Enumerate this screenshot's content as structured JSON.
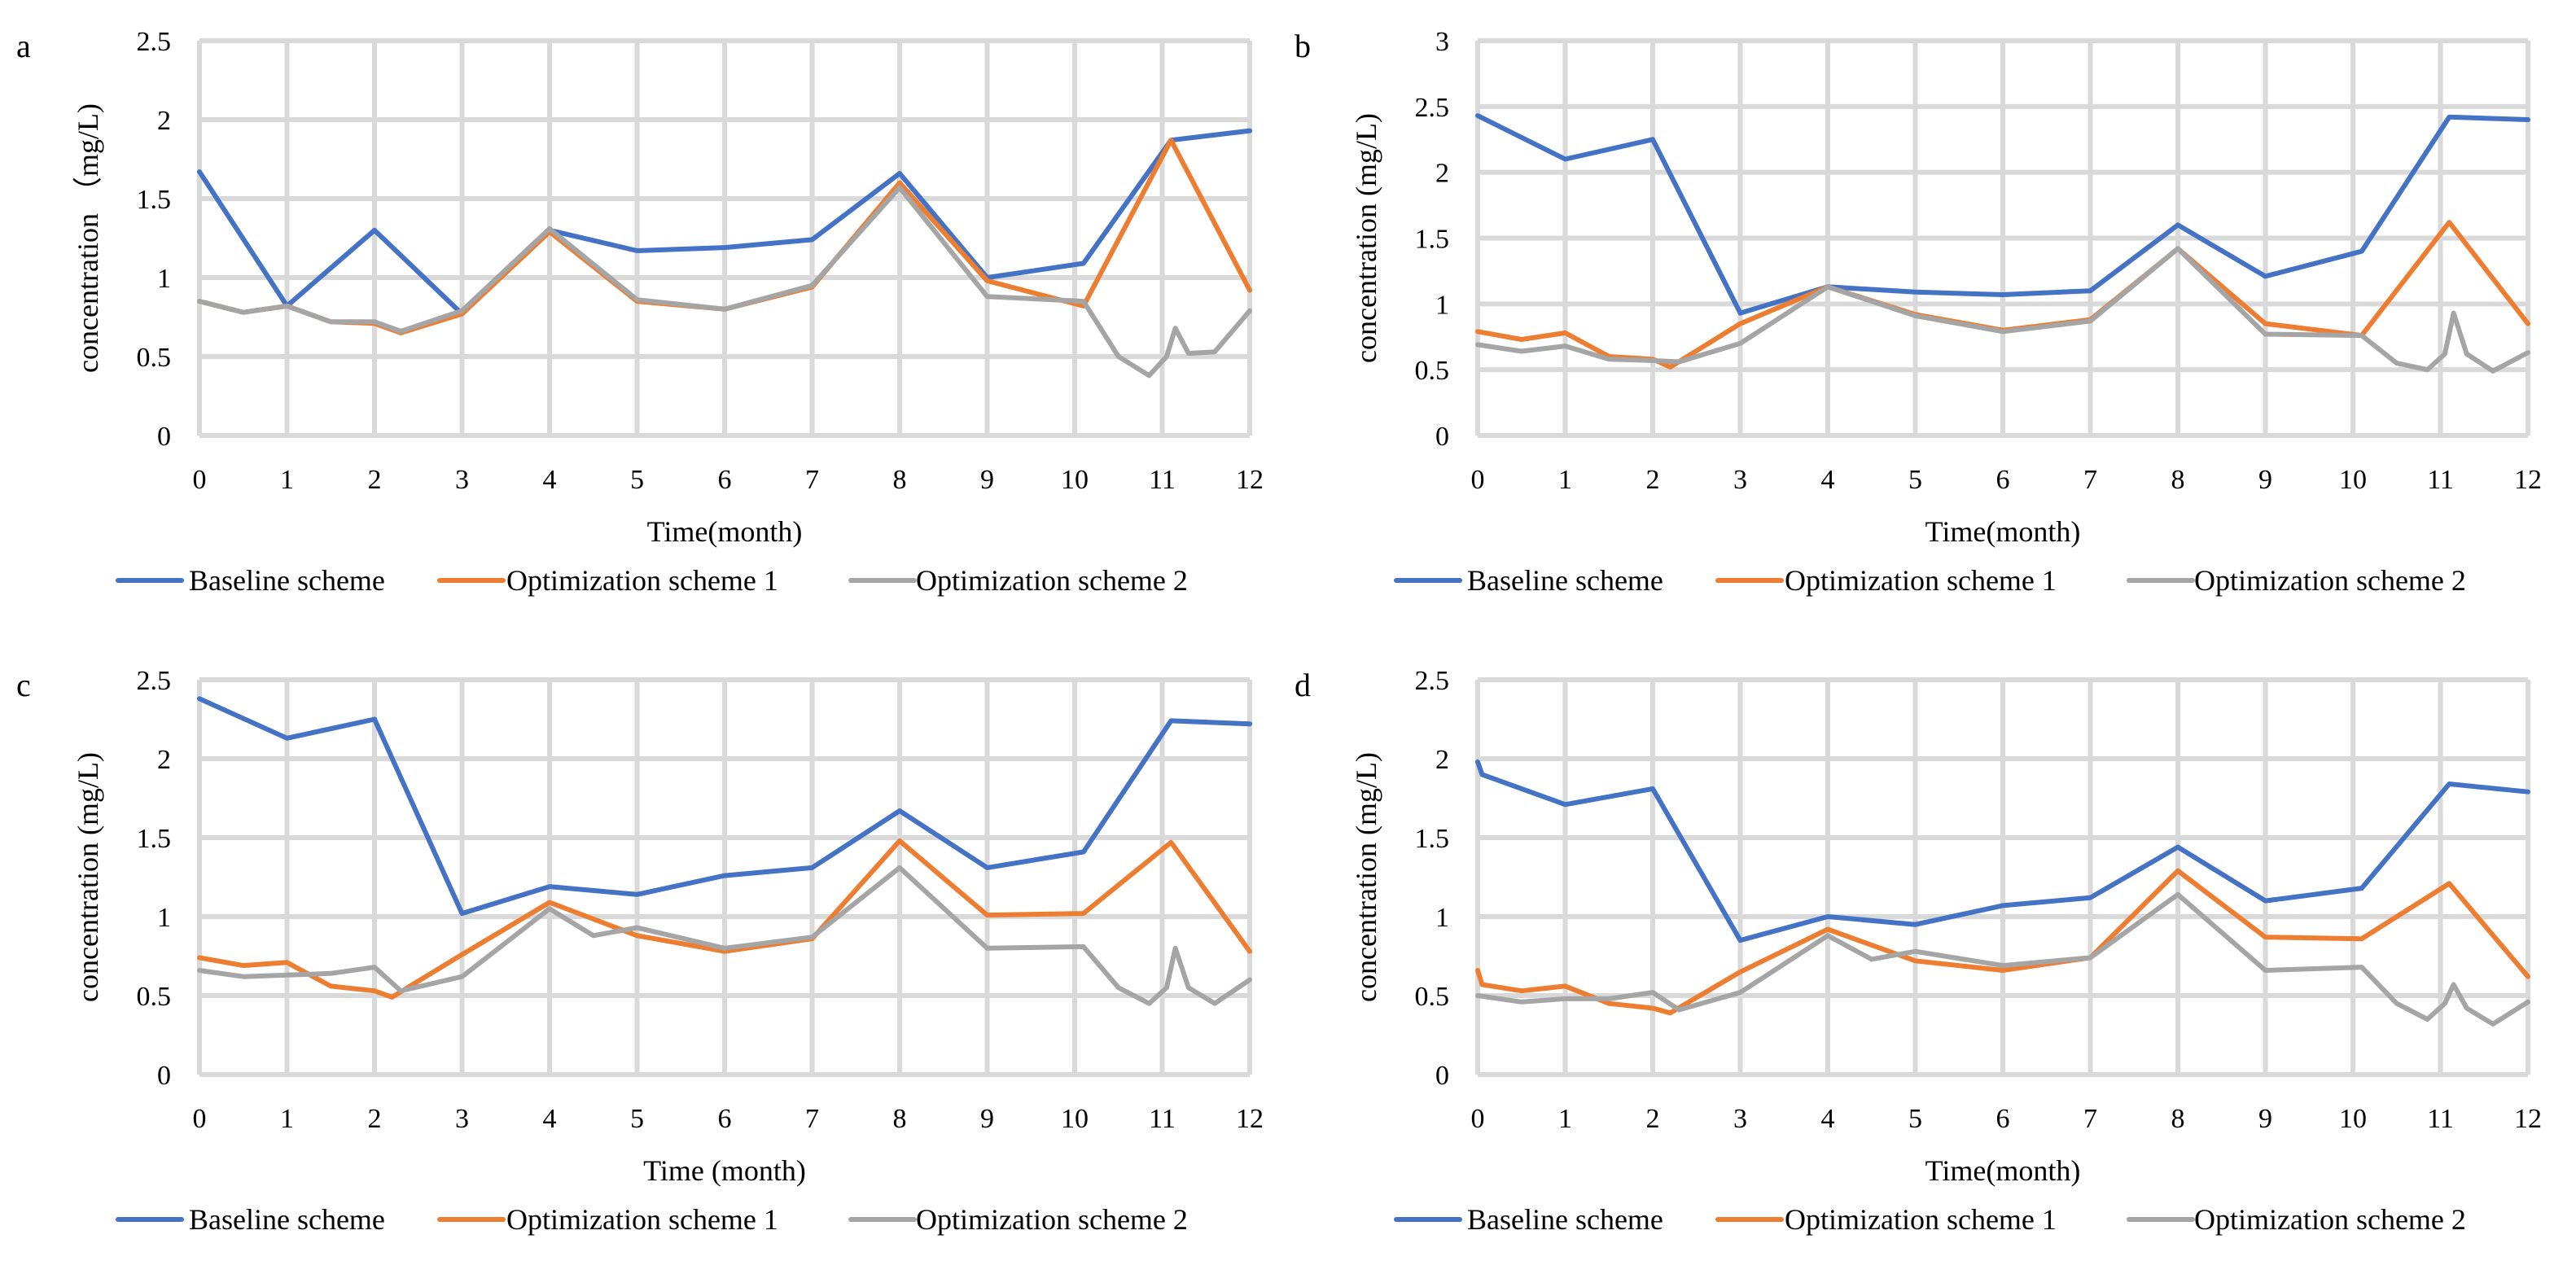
{
  "colors": {
    "baseline": "#4472C4",
    "opt1": "#ED7D31",
    "opt2": "#A5A5A5"
  },
  "chart_data": [
    {
      "panel": "a",
      "type": "line",
      "xlabel": "Time(month)",
      "ylabel": "concentration （mg/L)",
      "xlim": [
        0,
        12
      ],
      "ylim": [
        0,
        2.5
      ],
      "xticks": [
        "0",
        "1",
        "2",
        "3",
        "4",
        "5",
        "6",
        "7",
        "8",
        "9",
        "10",
        "11",
        "12"
      ],
      "yticks": [
        "0",
        "0.5",
        "1",
        "1.5",
        "2",
        "2.5"
      ],
      "grid": true,
      "legend_position": "bottom",
      "series": [
        {
          "name": "Baseline scheme",
          "color_key": "baseline",
          "x": [
            0,
            1,
            2,
            3,
            4,
            5,
            6,
            7,
            8,
            9,
            10.1,
            11.1,
            12
          ],
          "y": [
            1.67,
            0.82,
            1.3,
            0.77,
            1.3,
            1.17,
            1.19,
            1.24,
            1.66,
            1.0,
            1.09,
            1.87,
            1.93
          ]
        },
        {
          "name": "Optimization scheme 1",
          "color_key": "opt1",
          "x": [
            0,
            0.5,
            1,
            1.5,
            2,
            2.3,
            3,
            4,
            5,
            6,
            7,
            8,
            9,
            10.1,
            11.1,
            12
          ],
          "y": [
            0.85,
            0.78,
            0.82,
            0.72,
            0.71,
            0.65,
            0.77,
            1.29,
            0.85,
            0.8,
            0.94,
            1.6,
            0.98,
            0.82,
            1.87,
            0.92
          ]
        },
        {
          "name": "Optimization scheme 2",
          "color_key": "opt2",
          "x": [
            0,
            0.5,
            1,
            1.5,
            2,
            2.3,
            3,
            4,
            5,
            6,
            7,
            8,
            9,
            10.1,
            10.5,
            10.85,
            11.05,
            11.15,
            11.3,
            11.6,
            12
          ],
          "y": [
            0.85,
            0.78,
            0.82,
            0.72,
            0.72,
            0.66,
            0.79,
            1.31,
            0.86,
            0.8,
            0.95,
            1.57,
            0.88,
            0.85,
            0.5,
            0.38,
            0.5,
            0.68,
            0.52,
            0.53,
            0.79
          ]
        }
      ]
    },
    {
      "panel": "b",
      "type": "line",
      "xlabel": "Time(month)",
      "ylabel": "concentration (mg/L)",
      "xlim": [
        0,
        12
      ],
      "ylim": [
        0,
        3
      ],
      "xticks": [
        "0",
        "1",
        "2",
        "3",
        "4",
        "5",
        "6",
        "7",
        "8",
        "9",
        "10",
        "11",
        "12"
      ],
      "yticks": [
        "0",
        "0.5",
        "1",
        "1.5",
        "2",
        "2.5",
        "3"
      ],
      "grid": true,
      "legend_position": "bottom",
      "series": [
        {
          "name": "Baseline scheme",
          "color_key": "baseline",
          "x": [
            0,
            1,
            2,
            3,
            4,
            5,
            6,
            7,
            8,
            9,
            10.1,
            11.1,
            12
          ],
          "y": [
            2.43,
            2.1,
            2.25,
            0.93,
            1.13,
            1.09,
            1.07,
            1.1,
            1.6,
            1.21,
            1.4,
            2.42,
            2.4
          ]
        },
        {
          "name": "Optimization scheme 1",
          "color_key": "opt1",
          "x": [
            0,
            0.5,
            1,
            1.5,
            2,
            2.2,
            3,
            4,
            5,
            6,
            7,
            8,
            9,
            10.1,
            11.1,
            12
          ],
          "y": [
            0.79,
            0.73,
            0.78,
            0.6,
            0.58,
            0.52,
            0.85,
            1.13,
            0.92,
            0.8,
            0.88,
            1.42,
            0.85,
            0.76,
            1.62,
            0.85
          ]
        },
        {
          "name": "Optimization scheme 2",
          "color_key": "opt2",
          "x": [
            0,
            0.5,
            1,
            1.5,
            2,
            2.3,
            3,
            4,
            5,
            6,
            7,
            8,
            9,
            10.1,
            10.5,
            10.85,
            11.05,
            11.15,
            11.3,
            11.6,
            12
          ],
          "y": [
            0.69,
            0.64,
            0.68,
            0.58,
            0.57,
            0.56,
            0.7,
            1.13,
            0.91,
            0.79,
            0.87,
            1.42,
            0.77,
            0.76,
            0.55,
            0.5,
            0.62,
            0.93,
            0.62,
            0.49,
            0.63
          ]
        }
      ]
    },
    {
      "panel": "c",
      "type": "line",
      "xlabel": "Time (month)",
      "ylabel": "concentration (mg/L)",
      "xlim": [
        0,
        12
      ],
      "ylim": [
        0,
        2.5
      ],
      "xticks": [
        "0",
        "1",
        "2",
        "3",
        "4",
        "5",
        "6",
        "7",
        "8",
        "9",
        "10",
        "11",
        "12"
      ],
      "yticks": [
        "0",
        "0.5",
        "1",
        "1.5",
        "2",
        "2.5"
      ],
      "grid": true,
      "legend_position": "bottom",
      "series": [
        {
          "name": "Baseline scheme",
          "color_key": "baseline",
          "x": [
            0,
            1,
            2,
            3,
            4,
            5,
            6,
            7,
            8,
            9,
            10.1,
            11.1,
            12
          ],
          "y": [
            2.38,
            2.13,
            2.25,
            1.02,
            1.19,
            1.14,
            1.26,
            1.31,
            1.67,
            1.31,
            1.41,
            2.24,
            2.22
          ]
        },
        {
          "name": "Optimization scheme 1",
          "color_key": "opt1",
          "x": [
            0,
            0.5,
            1,
            1.5,
            2,
            2.2,
            3,
            4,
            5,
            6,
            7,
            8,
            9,
            10.1,
            11.1,
            12
          ],
          "y": [
            0.74,
            0.69,
            0.71,
            0.56,
            0.53,
            0.49,
            0.76,
            1.09,
            0.88,
            0.78,
            0.86,
            1.48,
            1.01,
            1.02,
            1.47,
            0.78
          ]
        },
        {
          "name": "Optimization scheme 2",
          "color_key": "opt2",
          "x": [
            0,
            0.5,
            1,
            1.5,
            2,
            2.3,
            3,
            4,
            4.5,
            5,
            6,
            7,
            8,
            9,
            10.1,
            10.5,
            10.85,
            11.05,
            11.15,
            11.3,
            11.6,
            12
          ],
          "y": [
            0.66,
            0.62,
            0.63,
            0.64,
            0.68,
            0.53,
            0.62,
            1.05,
            0.88,
            0.93,
            0.8,
            0.87,
            1.31,
            0.8,
            0.81,
            0.55,
            0.45,
            0.55,
            0.8,
            0.55,
            0.45,
            0.6
          ]
        }
      ]
    },
    {
      "panel": "d",
      "type": "line",
      "xlabel": "Time(month)",
      "ylabel": "concentration (mg/L)",
      "xlim": [
        0,
        12
      ],
      "ylim": [
        0,
        2.5
      ],
      "xticks": [
        "0",
        "1",
        "2",
        "3",
        "4",
        "5",
        "6",
        "7",
        "8",
        "9",
        "10",
        "11",
        "12"
      ],
      "yticks": [
        "0",
        "0.5",
        "1",
        "1.5",
        "2",
        "2.5"
      ],
      "grid": true,
      "legend_position": "bottom",
      "series": [
        {
          "name": "Baseline scheme",
          "color_key": "baseline",
          "x": [
            0,
            0.05,
            1,
            2,
            3,
            4,
            5,
            6,
            7,
            8,
            9,
            10.1,
            11.1,
            12
          ],
          "y": [
            1.98,
            1.9,
            1.71,
            1.81,
            0.85,
            1.0,
            0.95,
            1.07,
            1.12,
            1.44,
            1.1,
            1.18,
            1.84,
            1.79
          ]
        },
        {
          "name": "Optimization scheme 1",
          "color_key": "opt1",
          "x": [
            0,
            0.05,
            0.5,
            1,
            1.5,
            2,
            2.2,
            3,
            4,
            5,
            6,
            7,
            8,
            9,
            10.1,
            11.1,
            12
          ],
          "y": [
            0.66,
            0.57,
            0.53,
            0.56,
            0.45,
            0.42,
            0.39,
            0.65,
            0.92,
            0.72,
            0.66,
            0.74,
            1.29,
            0.87,
            0.86,
            1.21,
            0.62
          ]
        },
        {
          "name": "Optimization scheme 2",
          "color_key": "opt2",
          "x": [
            0,
            0.5,
            1,
            1.5,
            2,
            2.3,
            3,
            4,
            4.5,
            5,
            6,
            7,
            8,
            9,
            10.1,
            10.5,
            10.85,
            11.05,
            11.15,
            11.3,
            11.6,
            12
          ],
          "y": [
            0.5,
            0.46,
            0.48,
            0.48,
            0.52,
            0.41,
            0.52,
            0.88,
            0.73,
            0.78,
            0.69,
            0.74,
            1.14,
            0.66,
            0.68,
            0.45,
            0.35,
            0.45,
            0.57,
            0.42,
            0.32,
            0.46
          ]
        }
      ]
    }
  ]
}
